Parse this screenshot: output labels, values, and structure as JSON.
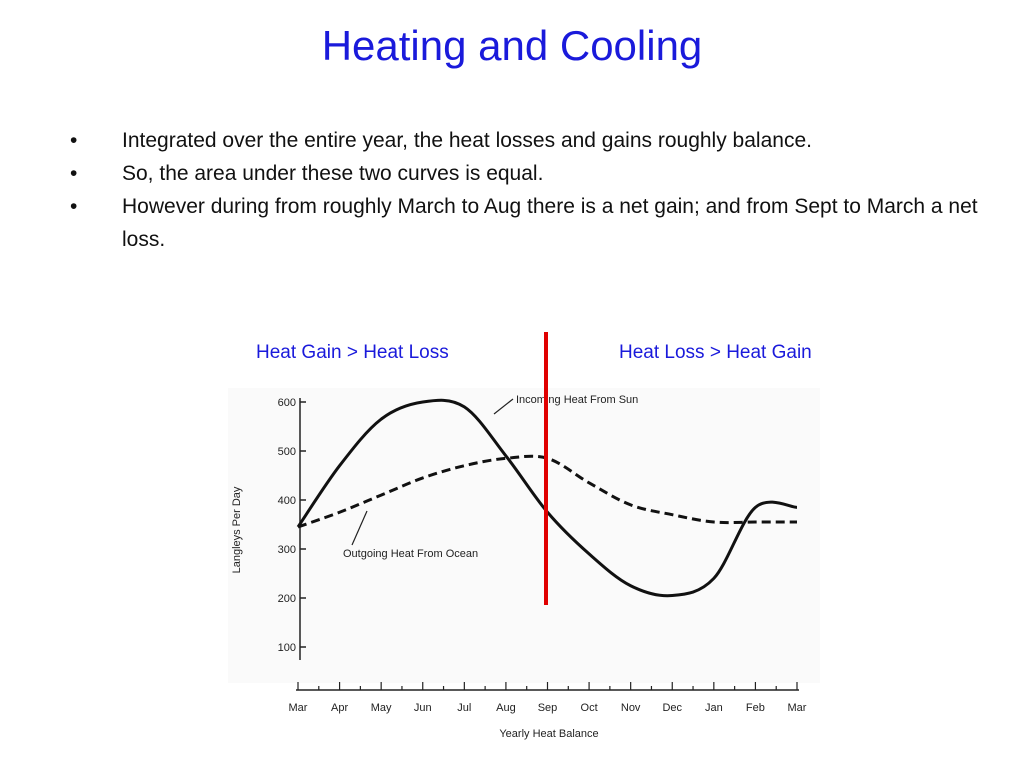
{
  "slide": {
    "title": "Heating and Cooling",
    "bullet_char": "•",
    "bullets": [
      "Integrated over the entire year, the heat losses and gains roughly balance.",
      "So, the area under these two curves is equal.",
      "However during from roughly March to Aug there is a net gain; and from Sept to March a net loss."
    ],
    "left_label": "Heat Gain > Heat Loss",
    "right_label": "Heat Loss > Heat Gain"
  },
  "colors": {
    "title": "#1a1adb",
    "divider": "#e00000",
    "curve": "#111111"
  },
  "chart_data": {
    "type": "line",
    "title": "",
    "xlabel": "Yearly Heat Balance",
    "ylabel": "Langleys Per Day",
    "categories": [
      "Mar",
      "Apr",
      "May",
      "Jun",
      "Jul",
      "Aug",
      "Sep",
      "Oct",
      "Nov",
      "Dec",
      "Jan",
      "Feb",
      "Mar"
    ],
    "yticks": [
      100,
      200,
      300,
      400,
      500,
      600
    ],
    "ylim": [
      50,
      610
    ],
    "series": [
      {
        "name": "Incoming Heat From Sun",
        "style": "solid",
        "values": [
          345,
          470,
          565,
          600,
          590,
          490,
          375,
          290,
          225,
          205,
          240,
          385,
          385
        ]
      },
      {
        "name": "Outgoing Heat From Ocean",
        "style": "dashed",
        "values": [
          345,
          375,
          410,
          445,
          470,
          485,
          485,
          435,
          390,
          370,
          355,
          355,
          355
        ]
      }
    ],
    "annotation": "vertical red line at Sep",
    "grid": false
  }
}
